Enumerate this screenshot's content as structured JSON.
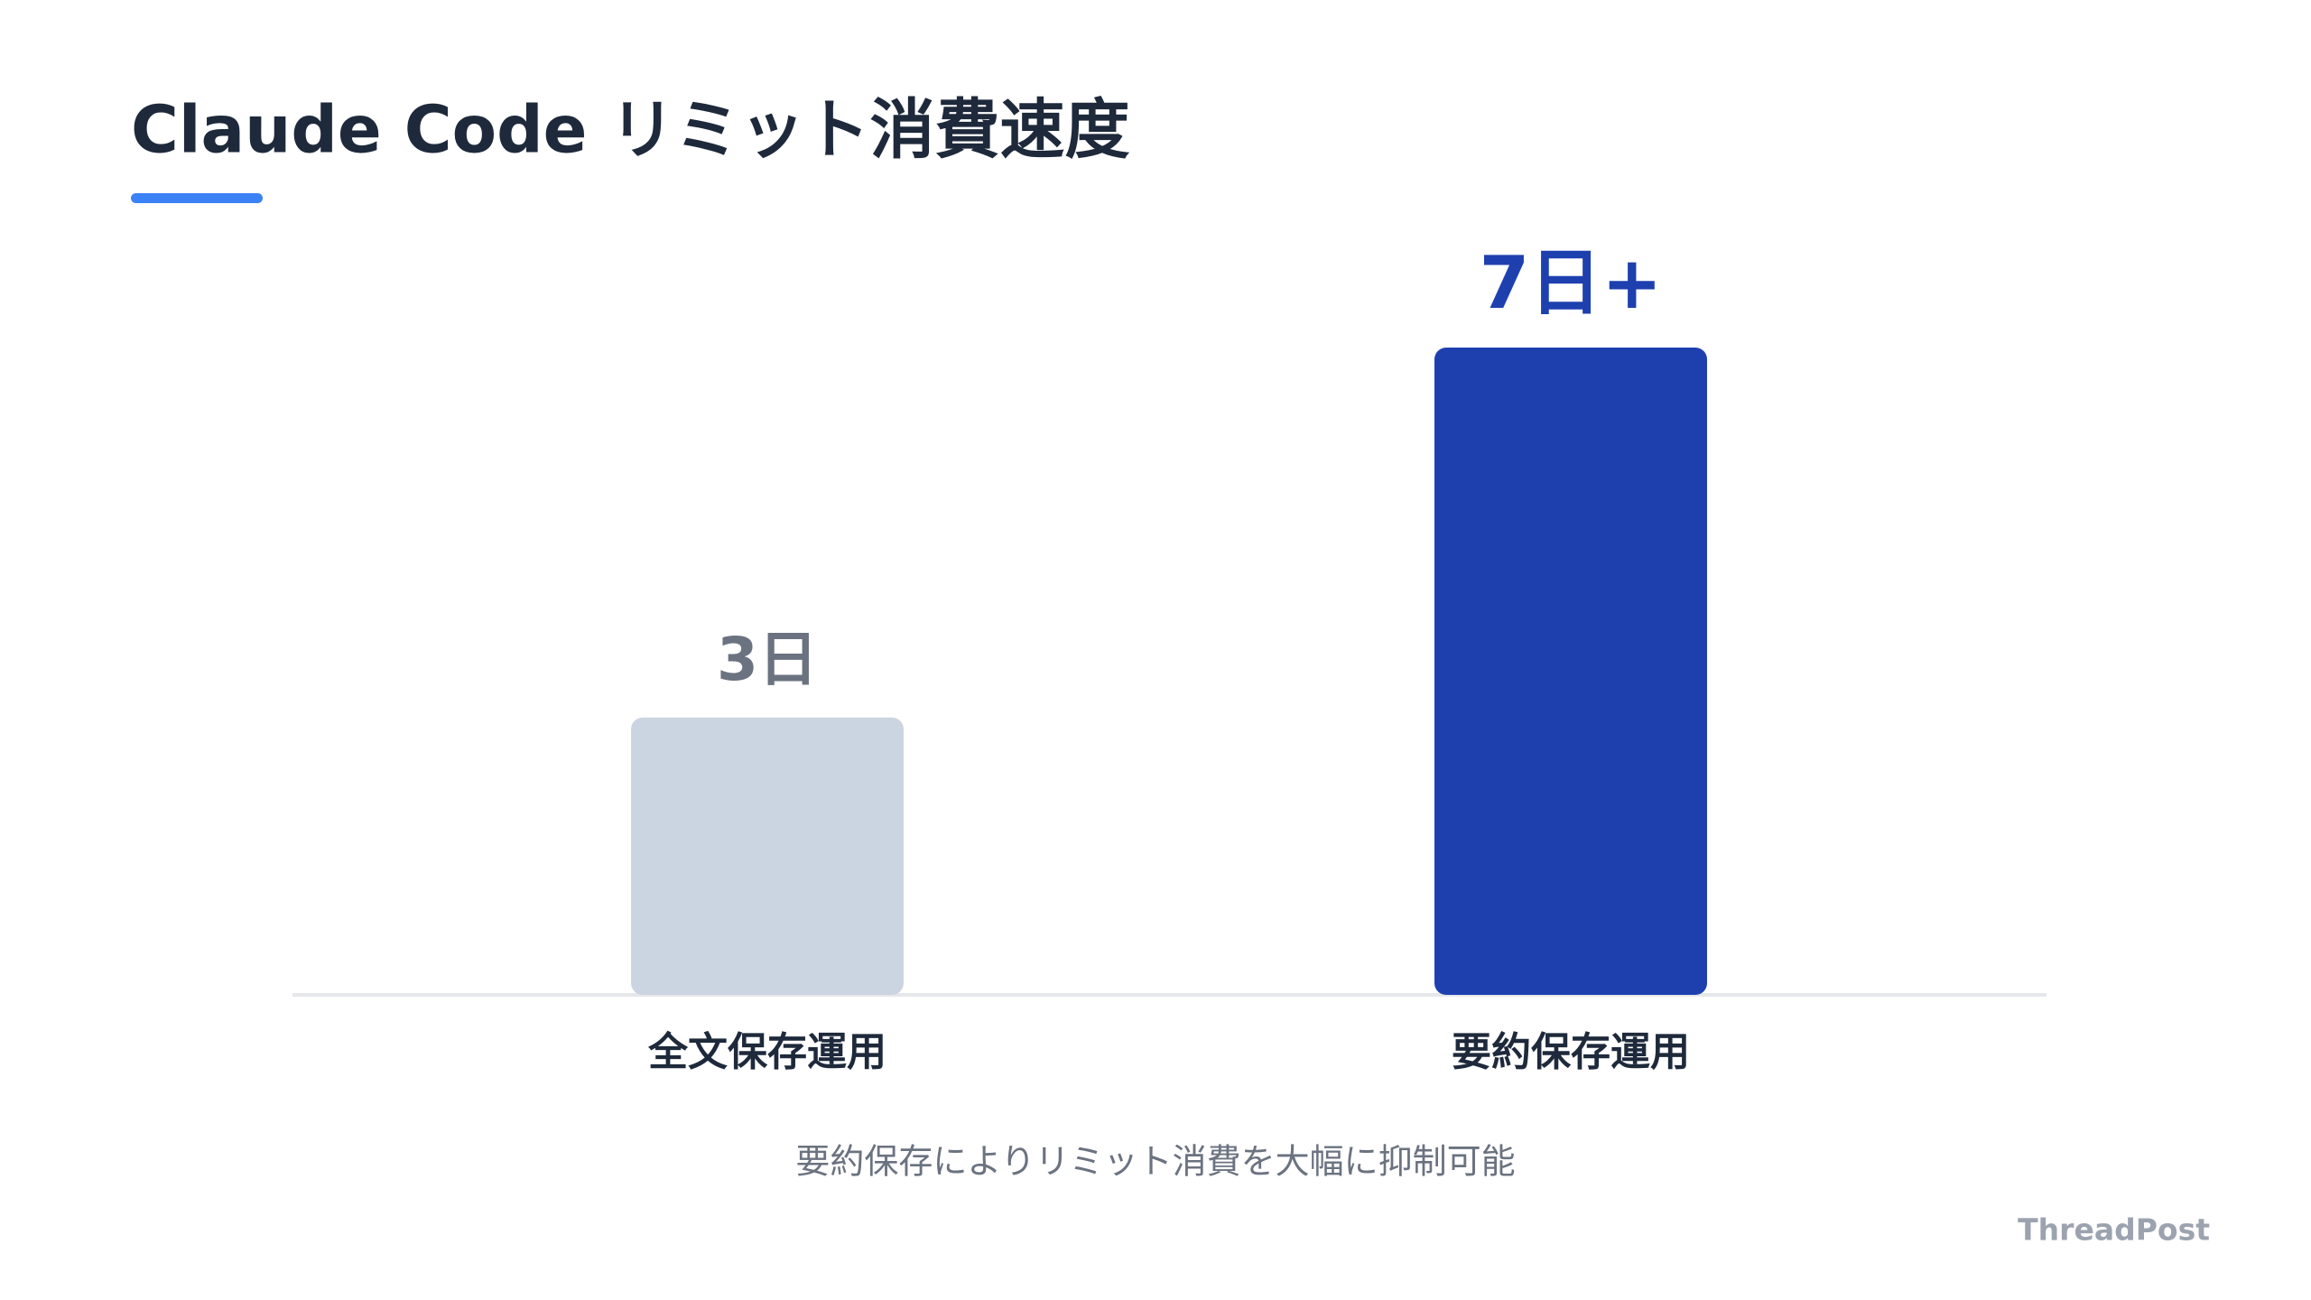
{
  "chart_data": {
    "type": "bar",
    "title": "Claude Code リミット消費速度",
    "categories": [
      "全文保存運用",
      "要約保存運用"
    ],
    "values": [
      3,
      7
    ],
    "value_labels": [
      "3日",
      "7日+"
    ],
    "colors": [
      "#cbd5e1",
      "#1e40af"
    ],
    "value_label_colors": [
      "#6b7280",
      "#1e40af"
    ],
    "caption": "要約保存によりリミット消費を大幅に抑制可能"
  },
  "footer": {
    "brand": "ThreadPost"
  }
}
